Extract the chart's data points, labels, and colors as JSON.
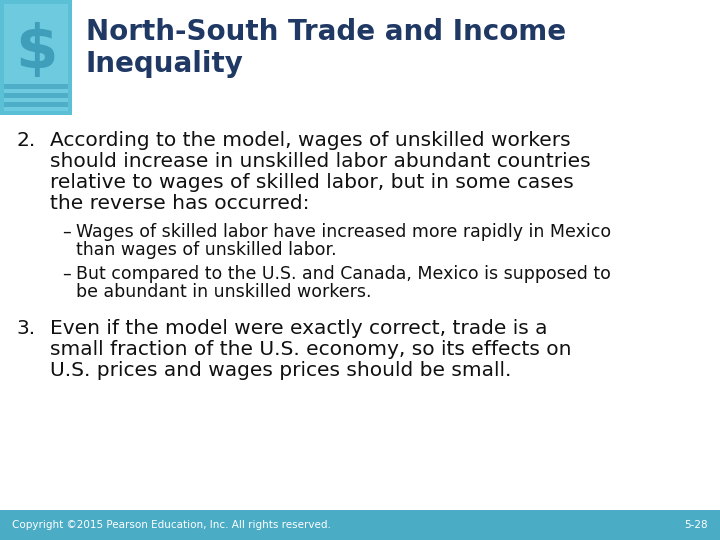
{
  "title_line1": "North-South Trade and Income",
  "title_line2": "Inequality",
  "title_color": "#1F3864",
  "body_bg_color": "#FFFFFF",
  "header_accent_color": "#5BBFD6",
  "footer_bg_color": "#4BACC6",
  "footer_text": "Copyright ©2015 Pearson Education, Inc. All rights reserved.",
  "footer_page": "5-28",
  "footer_text_color": "#FFFFFF",
  "item2_lines": [
    "According to the model, wages of unskilled workers",
    "should increase in unskilled labor abundant countries",
    "relative to wages of skilled labor, but in some cases",
    "the reverse has occurred:"
  ],
  "bullet1_lines": [
    "Wages of skilled labor have increased more rapidly in Mexico",
    "than wages of unskilled labor."
  ],
  "bullet2_lines": [
    "But compared to the U.S. and Canada, Mexico is supposed to",
    "be abundant in unskilled workers."
  ],
  "item3_lines": [
    "Even if the model were exactly correct, trade is a",
    "small fraction of the U.S. economy, so its effects on",
    "U.S. prices and wages prices should be small."
  ],
  "title_fontsize": 20,
  "main_fontsize": 14.5,
  "bullet_fontsize": 12.5,
  "footer_fontsize": 7.5
}
